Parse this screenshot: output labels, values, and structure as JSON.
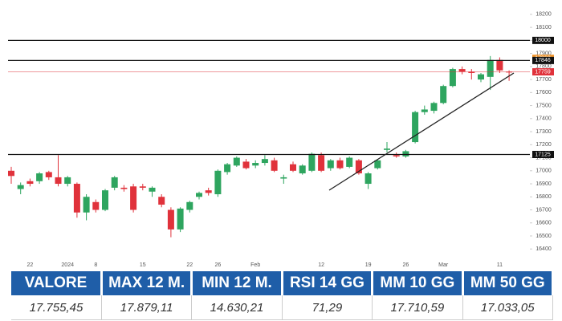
{
  "chart_data": {
    "type": "candlestick",
    "categories": [
      null,
      null,
      "22",
      null,
      null,
      null,
      "2024",
      null,
      null,
      "8",
      null,
      null,
      null,
      null,
      "15",
      null,
      null,
      null,
      null,
      "22",
      null,
      null,
      "26",
      null,
      null,
      null,
      "Feb",
      null,
      null,
      null,
      null,
      null,
      null,
      "12",
      null,
      null,
      null,
      null,
      "19",
      null,
      null,
      null,
      "26",
      null,
      null,
      null,
      "Mar",
      null,
      null,
      null,
      null,
      null,
      "11",
      null
    ],
    "open": [
      17000,
      16860,
      16920,
      16920,
      16990,
      16950,
      16900,
      16900,
      16680,
      16760,
      16700,
      16870,
      16870,
      16880,
      16880,
      16840,
      16800,
      16700,
      16550,
      16700,
      16800,
      16850,
      16820,
      16990,
      17040,
      17070,
      17040,
      17060,
      17080,
      16940,
      17050,
      16980,
      17000,
      17120,
      17020,
      17080,
      17030,
      17080,
      16900,
      17020,
      17160,
      17120,
      17110,
      17220,
      17450,
      17460,
      17520,
      17650,
      17780,
      17760,
      17700,
      17720,
      17850,
      17760
    ],
    "high": [
      17030,
      16910,
      16940,
      16990,
      17000,
      17120,
      16960,
      16910,
      16820,
      16780,
      16860,
      16960,
      16890,
      16900,
      16900,
      16880,
      16820,
      16720,
      16720,
      16770,
      16840,
      16870,
      17010,
      17060,
      17110,
      17090,
      17080,
      17120,
      17100,
      16970,
      17070,
      17050,
      17140,
      17140,
      17090,
      17100,
      17110,
      17090,
      16990,
      17090,
      17220,
      17140,
      17160,
      17460,
      17500,
      17530,
      17660,
      17790,
      17800,
      17780,
      17750,
      17880,
      17870,
      17770
    ],
    "low": [
      16900,
      16820,
      16880,
      16900,
      16930,
      16880,
      16880,
      16640,
      16620,
      16680,
      16690,
      16850,
      16840,
      16680,
      16850,
      16800,
      16720,
      16490,
      16530,
      16680,
      16780,
      16810,
      16800,
      16970,
      17030,
      17010,
      17020,
      17040,
      16990,
      16900,
      16990,
      16970,
      16990,
      16990,
      17000,
      17010,
      17020,
      16970,
      16860,
      17010,
      17140,
      17100,
      17100,
      17210,
      17430,
      17440,
      17510,
      17640,
      17740,
      17700,
      17680,
      17620,
      17750,
      17690
    ],
    "close": [
      16960,
      16890,
      16900,
      16980,
      16950,
      16900,
      16950,
      16680,
      16800,
      16700,
      16850,
      16950,
      16860,
      16700,
      16870,
      16870,
      16740,
      16550,
      16710,
      16760,
      16830,
      16830,
      17000,
      17050,
      17100,
      17020,
      17060,
      17090,
      17000,
      16950,
      17000,
      17040,
      17130,
      17000,
      17080,
      17020,
      17100,
      16980,
      16980,
      17080,
      17170,
      17110,
      17150,
      17450,
      17470,
      17520,
      17650,
      17780,
      17760,
      17750,
      17740,
      17850,
      17770,
      17755
    ],
    "up_color": "#2ea55f",
    "down_color": "#e0323b",
    "ylim": [
      16340,
      18310
    ],
    "yticks": [
      16400,
      16500,
      16600,
      16700,
      16800,
      16900,
      17000,
      17100,
      17200,
      17300,
      17400,
      17500,
      17600,
      17700,
      17800,
      17900,
      18000,
      18100,
      18200
    ],
    "levels": [
      {
        "value": 18000,
        "color": "#111111",
        "line": true
      },
      {
        "value": 17863,
        "color": "#f0962e",
        "line": false
      },
      {
        "value": 17846,
        "color": "#111111",
        "line": true
      },
      {
        "value": 17759,
        "color": "#e0323b",
        "line": true
      },
      {
        "value": 17125,
        "color": "#111111",
        "line": true
      }
    ]
  },
  "table": {
    "header": [
      "VALORE",
      "MAX 12 M.",
      "MIN 12 M.",
      "RSI 14 GG",
      "MM 10 GG",
      "MM 50 GG"
    ],
    "rows": [
      [
        "17.755,45",
        "17.879,11",
        "14.630,21",
        "71,29",
        "17.710,59",
        "17.033,05"
      ]
    ]
  }
}
